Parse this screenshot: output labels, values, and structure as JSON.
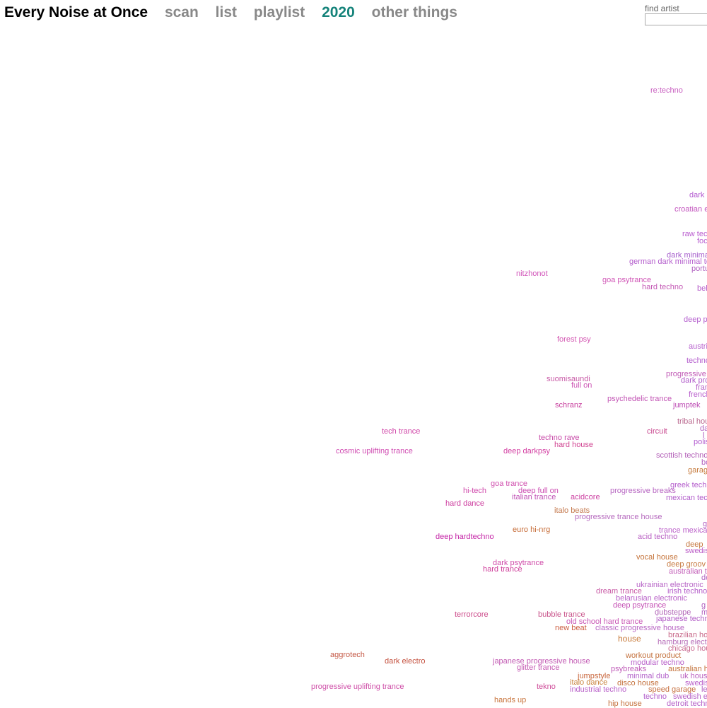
{
  "header": {
    "title": "Every Noise at Once",
    "nav": [
      {
        "label": "scan"
      },
      {
        "label": "list"
      },
      {
        "label": "playlist"
      },
      {
        "label": "2020",
        "current": true
      },
      {
        "label": "other things"
      }
    ],
    "link_color": "#888888",
    "current_color": "#15837a"
  },
  "search": {
    "label": "find artist",
    "value": "",
    "placeholder": ""
  },
  "genres": [
    {
      "label": "re:techno",
      "color": "#c85ec0"
    },
    {
      "label": "dark",
      "color": "#b35ad0"
    },
    {
      "label": "croatian e",
      "color": "#c355be"
    },
    {
      "label": "raw tec",
      "color": "#b95ccf"
    },
    {
      "label": "foc",
      "color": "#b85fd0"
    },
    {
      "label": "dark minima",
      "color": "#a65ecc"
    },
    {
      "label": "german dark minimal te",
      "color": "#b35ccc"
    },
    {
      "label": "portu",
      "color": "#b060c0"
    },
    {
      "label": "nitzhonot",
      "color": "#d154b9"
    },
    {
      "label": "goa psytrance",
      "color": "#d055b6"
    },
    {
      "label": "hard techno",
      "color": "#c45ab5"
    },
    {
      "label": "bel",
      "color": "#b55bc9"
    },
    {
      "label": "deep p",
      "color": "#b45fce"
    },
    {
      "label": "forest psy",
      "color": "#d357b2"
    },
    {
      "label": "austri",
      "color": "#b65ecd"
    },
    {
      "label": "techno",
      "color": "#b45dcd"
    },
    {
      "label": "progressive",
      "color": "#c05ab5"
    },
    {
      "label": "dark pro",
      "color": "#b05bc9"
    },
    {
      "label": "suomisaundi",
      "color": "#c85aa6"
    },
    {
      "label": "full on",
      "color": "#cc55b4"
    },
    {
      "label": "fran",
      "color": "#b863c8"
    },
    {
      "label": "french",
      "color": "#b85ccb"
    },
    {
      "label": "psychedelic trance",
      "color": "#c356b5"
    },
    {
      "label": "schranz",
      "color": "#c8409e"
    },
    {
      "label": "jumptek",
      "color": "#bc4ab3"
    },
    {
      "label": "tribal hou",
      "color": "#b8658c"
    },
    {
      "label": "da",
      "color": "#b060c0"
    },
    {
      "label": "tech trance",
      "color": "#d046a8"
    },
    {
      "label": "circuit",
      "color": "#c8488f"
    },
    {
      "label": "l",
      "color": "#b060c0"
    },
    {
      "label": "techno rave",
      "color": "#c84aa8"
    },
    {
      "label": "polis",
      "color": "#b35ccf"
    },
    {
      "label": "hard house",
      "color": "#d14592"
    },
    {
      "label": "cosmic uplifting trance",
      "color": "#d04cb2"
    },
    {
      "label": "deep darkpsy",
      "color": "#d33fa2"
    },
    {
      "label": "scottish techno",
      "color": "#b25eb7"
    },
    {
      "label": "bo",
      "color": "#b060c0"
    },
    {
      "label": "garag",
      "color": "#c67a3c"
    },
    {
      "label": "goa trance",
      "color": "#d04fae"
    },
    {
      "label": "greek tech",
      "color": "#b45ccc"
    },
    {
      "label": "hi-tech",
      "color": "#d04aac"
    },
    {
      "label": "deep full on",
      "color": "#cc4cb2"
    },
    {
      "label": "progressive breaks",
      "color": "#b766c2"
    },
    {
      "label": "italian trance",
      "color": "#c154b6"
    },
    {
      "label": "acidcore",
      "color": "#cc41a2"
    },
    {
      "label": "mexican tec",
      "color": "#b25ecb"
    },
    {
      "label": "hard dance",
      "color": "#cc3c9e"
    },
    {
      "label": "italo beats",
      "color": "#c4784c"
    },
    {
      "label": "progressive trance house",
      "color": "#b66abe"
    },
    {
      "label": "g",
      "color": "#b060c0"
    },
    {
      "label": "euro hi-nrg",
      "color": "#c66b36"
    },
    {
      "label": "trance mexica",
      "color": "#ba5ec8"
    },
    {
      "label": "deep hardtechno",
      "color": "#c423a6"
    },
    {
      "label": "acid techno",
      "color": "#b960c4"
    },
    {
      "label": "deep",
      "color": "#c5773e"
    },
    {
      "label": "swedis",
      "color": "#bb5ec7"
    },
    {
      "label": "vocal house",
      "color": "#c5743b"
    },
    {
      "label": "dark psytrance",
      "color": "#d04ca9"
    },
    {
      "label": "deep groov",
      "color": "#c6793f"
    },
    {
      "label": "hard trance",
      "color": "#cf3e9b"
    },
    {
      "label": "australian t",
      "color": "#c15bb6"
    },
    {
      "label": "de",
      "color": "#b060c0"
    },
    {
      "label": "ukrainian electronic",
      "color": "#b865c7"
    },
    {
      "label": "dream trance",
      "color": "#c85aa5"
    },
    {
      "label": "irish techno",
      "color": "#b45cc9"
    },
    {
      "label": "belarusian electronic",
      "color": "#b963c8"
    },
    {
      "label": "deep psytrance",
      "color": "#c550b5"
    },
    {
      "label": "g",
      "color": "#b060c0"
    },
    {
      "label": "terrorcore",
      "color": "#cc4b8a"
    },
    {
      "label": "bubble trance",
      "color": "#c9558b"
    },
    {
      "label": "dubsteppe",
      "color": "#b267b8"
    },
    {
      "label": "m",
      "color": "#b060c0"
    },
    {
      "label": "japanese techn",
      "color": "#b35fc7"
    },
    {
      "label": "old school hard trance",
      "color": "#c855b4"
    },
    {
      "label": "new beat",
      "color": "#cc5e42"
    },
    {
      "label": "classic progressive house",
      "color": "#b866c3"
    },
    {
      "label": "brazilian ho",
      "color": "#c86a8a"
    },
    {
      "label": "house",
      "color": "#c77a3a"
    },
    {
      "label": "hamburg elect",
      "color": "#b66db8"
    },
    {
      "label": "aggrotech",
      "color": "#c45845"
    },
    {
      "label": "chicago hou",
      "color": "#c96a90"
    },
    {
      "label": "workout product",
      "color": "#c3703c"
    },
    {
      "label": "dark electro",
      "color": "#c4503e"
    },
    {
      "label": "japanese progressive house",
      "color": "#c259b3"
    },
    {
      "label": "modular techno",
      "color": "#b860c9"
    },
    {
      "label": "glitter trance",
      "color": "#c55ab3"
    },
    {
      "label": "psybreaks",
      "color": "#bf5cb8"
    },
    {
      "label": "australian h",
      "color": "#c3713a"
    },
    {
      "label": "jumpstyle",
      "color": "#c8653b"
    },
    {
      "label": "minimal dub",
      "color": "#b464ca"
    },
    {
      "label": "uk hous",
      "color": "#bb62c0"
    },
    {
      "label": "italo dance",
      "color": "#c8833c"
    },
    {
      "label": "disco house",
      "color": "#c4713d"
    },
    {
      "label": "swedis",
      "color": "#b85ec9"
    },
    {
      "label": "progressive uplifting trance",
      "color": "#cf4fa8"
    },
    {
      "label": "tekno",
      "color": "#ce4b98"
    },
    {
      "label": "industrial techno",
      "color": "#b962c9"
    },
    {
      "label": "speed garage",
      "color": "#c66f40"
    },
    {
      "label": "le",
      "color": "#b060c0"
    },
    {
      "label": "techno",
      "color": "#b35fcb"
    },
    {
      "label": "swedish e",
      "color": "#b863c8"
    },
    {
      "label": "hands up",
      "color": "#c8733a"
    },
    {
      "label": "hip house",
      "color": "#c4703c"
    },
    {
      "label": "detroit techn",
      "color": "#b55fc8"
    }
  ]
}
